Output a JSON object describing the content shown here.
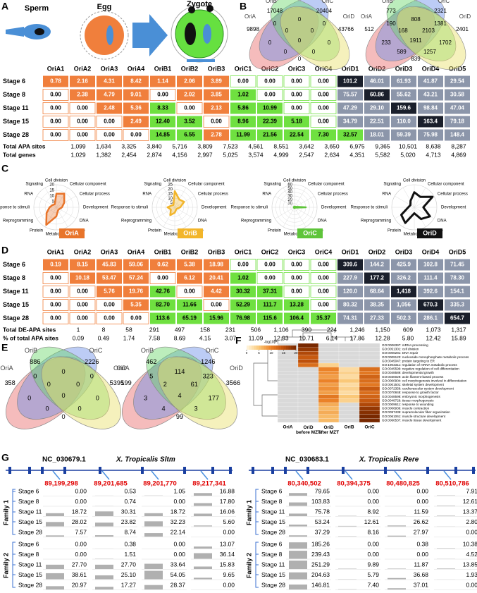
{
  "panel_labels": [
    "A",
    "B",
    "C",
    "D",
    "E",
    "F",
    "G"
  ],
  "panel_a": {
    "cells": [
      "Sperm",
      "Egg",
      "Zygote"
    ],
    "table": {
      "columns": [
        "OriA1",
        "OriA2",
        "OriA3",
        "OriA4",
        "OriB1",
        "OriB2",
        "OriB3",
        "OriC1",
        "OriC2",
        "OriC3",
        "OriC4",
        "OriD1",
        "OriD2",
        "OriD3",
        "OriD4",
        "OriD5"
      ],
      "rows": [
        {
          "label": "Stage 6",
          "values": [
            "0.78",
            "2.16",
            "4.31",
            "8.42",
            "1.14",
            "2.06",
            "3.89",
            "0.00",
            "0.00",
            "0.00",
            "0.00",
            "101.2",
            "46.01",
            "61.93",
            "41.87",
            "29.54"
          ]
        },
        {
          "label": "Stage 8",
          "values": [
            "0.00",
            "2.38",
            "4.79",
            "9.01",
            "0.00",
            "2.02",
            "3.85",
            "1.02",
            "0.00",
            "0.00",
            "0.00",
            "75.57",
            "60.86",
            "55.62",
            "43.21",
            "30.58"
          ]
        },
        {
          "label": "Stage 11",
          "values": [
            "0.00",
            "0.00",
            "2.48",
            "5.36",
            "8.33",
            "0.00",
            "2.13",
            "5.86",
            "10.99",
            "0.00",
            "0.00",
            "47.29",
            "29.10",
            "159.6",
            "98.84",
            "47.04"
          ]
        },
        {
          "label": "Stage 15",
          "values": [
            "0.00",
            "0.00",
            "0.00",
            "2.49",
            "12.40",
            "3.52",
            "0.00",
            "8.96",
            "22.39",
            "5.18",
            "0.00",
            "34.79",
            "22.51",
            "110.0",
            "163.4",
            "79.18"
          ]
        },
        {
          "label": "Stage 28",
          "values": [
            "0.00",
            "0.00",
            "0.00",
            "0.00",
            "14.85",
            "6.55",
            "2.78",
            "11.99",
            "21.56",
            "22.54",
            "7.30",
            "32.57",
            "18.01",
            "59.39",
            "75.98",
            "148.4"
          ]
        }
      ],
      "totals": [
        {
          "label": "Total APA sites",
          "values": [
            "1,099",
            "1,634",
            "3,325",
            "3,840",
            "5,716",
            "3,809",
            "7,523",
            "4,561",
            "8,551",
            "3,642",
            "3,650",
            "6,975",
            "9,365",
            "10,501",
            "8,638",
            "8,287"
          ]
        },
        {
          "label": "Total genes",
          "values": [
            "1,029",
            "1,382",
            "2,454",
            "2,874",
            "4,156",
            "2,997",
            "5,025",
            "3,574",
            "4,999",
            "2,547",
            "2,634",
            "4,351",
            "5,582",
            "5,020",
            "4,713",
            "4,869"
          ]
        }
      ]
    }
  },
  "panel_b": {
    "venns": [
      {
        "labels": [
          "OriA",
          "OriB",
          "OriC",
          "OriD"
        ],
        "values": [
          "17048",
          "20404",
          "0",
          "0",
          "0",
          "9898",
          "0",
          "0",
          "43766",
          "0",
          "0",
          "0",
          "0",
          "0",
          "0"
        ]
      },
      {
        "labels": [
          "OriA",
          "OriB",
          "OriC",
          "OriD"
        ],
        "values": [
          "773",
          "2321",
          "190",
          "808",
          "1381",
          "512",
          "168",
          "2103",
          "2401",
          "233",
          "1911",
          "1702",
          "589",
          "1257",
          "839"
        ]
      }
    ]
  },
  "panel_c": {
    "axes": [
      "Cell division",
      "Cellular component",
      "Cellular process",
      "Development",
      "DNA",
      "Immune",
      "Metabolism",
      "Protein",
      "Reprogramming",
      "Response to stimuli",
      "RNA",
      "Signaling"
    ],
    "charts": [
      {
        "name": "OriA",
        "color": "#e8742a",
        "rlim": [
          0,
          20
        ],
        "rticks": [
          5,
          10,
          15,
          20
        ],
        "values": [
          12,
          14,
          8,
          5,
          3,
          3,
          8,
          18,
          10,
          6,
          4,
          3
        ]
      },
      {
        "name": "OriB",
        "color": "#f2b52a",
        "rlim": [
          0,
          25
        ],
        "rticks": [
          5,
          10,
          15,
          20,
          25
        ],
        "values": [
          18,
          10,
          12,
          6,
          3,
          3,
          6,
          10,
          5,
          8,
          4,
          3
        ]
      },
      {
        "name": "OriC",
        "color": "#5ec43a",
        "rlim": [
          0,
          60
        ],
        "rticks": [
          10,
          20,
          30,
          40,
          50,
          60
        ],
        "values": [
          2,
          2,
          3,
          30,
          2,
          2,
          2,
          2,
          2,
          2,
          2,
          2
        ]
      },
      {
        "name": "OriD",
        "color": "#111111",
        "rlim": [
          0,
          15
        ],
        "values": [
          10,
          8,
          14,
          6,
          12,
          9,
          4,
          12,
          10,
          4,
          3,
          5
        ]
      }
    ]
  },
  "panel_d": {
    "table": {
      "columns": [
        "OriA1",
        "OriA2",
        "OriA3",
        "OriA4",
        "OriB1",
        "OriB2",
        "OriB3",
        "OriC1",
        "OriC2",
        "OriC3",
        "OriC4",
        "OriD1",
        "OriD2",
        "OriD3",
        "OriD4",
        "OriD5"
      ],
      "rows": [
        {
          "label": "Stage 6",
          "values": [
            "0.19",
            "8.15",
            "45.83",
            "59.06",
            "0.62",
            "5.38",
            "18.98",
            "0.00",
            "0.00",
            "0.00",
            "0.00",
            "309.6",
            "144.2",
            "425.9",
            "102.8",
            "71.45"
          ]
        },
        {
          "label": "Stage 8",
          "values": [
            "0.00",
            "10.18",
            "53.47",
            "57.24",
            "0.00",
            "6.12",
            "20.41",
            "1.02",
            "0.00",
            "0.00",
            "0.00",
            "227.9",
            "177.2",
            "326.2",
            "111.4",
            "78.30"
          ]
        },
        {
          "label": "Stage 11",
          "values": [
            "0.00",
            "0.00",
            "5.76",
            "19.76",
            "42.76",
            "0.00",
            "4.42",
            "30.32",
            "37.31",
            "0.00",
            "0.00",
            "120.0",
            "68.64",
            "1,418",
            "392.6",
            "154.1"
          ]
        },
        {
          "label": "Stage 15",
          "values": [
            "0.00",
            "0.00",
            "0.00",
            "5.35",
            "82.70",
            "11.66",
            "0.00",
            "52.29",
            "111.7",
            "13.28",
            "0.00",
            "80.32",
            "38.35",
            "1,056",
            "670.3",
            "335.3"
          ]
        },
        {
          "label": "Stage 28",
          "values": [
            "0.00",
            "0.00",
            "0.00",
            "0.00",
            "113.6",
            "65.19",
            "15.96",
            "76.98",
            "115.6",
            "106.4",
            "35.37",
            "74.31",
            "27.33",
            "502.3",
            "286.1",
            "654.7"
          ]
        }
      ],
      "totals": [
        {
          "label": "Total DE-APA sites",
          "values": [
            "1",
            "8",
            "58",
            "291",
            "497",
            "158",
            "231",
            "506",
            "1,106",
            "390",
            "224",
            "1,246",
            "1,150",
            "609",
            "1,073",
            "1,317"
          ]
        },
        {
          "label": "% of total APA sites",
          "values": [
            "0.09",
            "0.49",
            "1.74",
            "7.58",
            "8.69",
            "4.15",
            "3.07",
            "11.09",
            "12.93",
            "10.71",
            "6.14",
            "17.86",
            "12.28",
            "5.80",
            "12.42",
            "15.89"
          ]
        }
      ]
    }
  },
  "panel_e": {
    "venns": [
      {
        "labels": [
          "OriA",
          "OriB",
          "OriC",
          "OriD"
        ],
        "values": [
          "886",
          "2226",
          "0",
          "0",
          "0",
          "358",
          "0",
          "0",
          "5395",
          "0",
          "0",
          "0",
          "0",
          "0",
          "0"
        ]
      },
      {
        "labels": [
          "OriA",
          "OriB",
          "OriC",
          "OriD"
        ],
        "values": [
          "462",
          "1246",
          "5",
          "114",
          "323",
          "199",
          "2",
          "61",
          "3566",
          "3",
          "4",
          "177",
          "4",
          "3",
          "99"
        ]
      }
    ]
  },
  "panel_f": {
    "legend_title": "-log10(P)",
    "clim": [
      0,
      20
    ],
    "legend_ticks": [
      0,
      5,
      10,
      15,
      20
    ],
    "columns": [
      "OriA",
      "OriD before MZT",
      "OriD after MZT",
      "OriB",
      "OriC"
    ],
    "terms": [
      "GO:0006397: mRNA processing",
      "GO:0051301: cell division",
      "GO:0006281: DNA repair",
      "GO:0009123: nucleoside monophosphate metabolic process",
      "GO:0045047: protein targeting to ER",
      "GO:1903311: regulation of mRNA metabolic process",
      "GO:0045596: negative regulation of cell differentiation",
      "GO:0048589: developmental growth",
      "GO:0030029: actin filament-based process",
      "GO:0000904: cell morphogenesis involved in differentiation",
      "GO:0001501: skeletal system development",
      "GO:0072358: cardiovascular system development",
      "GO:0070848: response to growth factor",
      "GO:0048598: embryonic morphogenesis",
      "GO:0048729: tissue morphogenesis",
      "GO:0009611: response to wounding",
      "GO:0006936: muscle contraction",
      "GO:0097435: supramolecular fiber organization",
      "GO:0061061: muscle structure development",
      "GO:0060537: muscle tissue development"
    ],
    "values": [
      [
        null,
        20,
        null,
        null,
        null
      ],
      [
        null,
        18,
        null,
        null,
        null
      ],
      [
        null,
        16,
        null,
        null,
        null
      ],
      [
        null,
        14,
        null,
        null,
        null
      ],
      [
        null,
        15,
        null,
        null,
        null
      ],
      [
        null,
        12,
        4,
        null,
        null
      ],
      [
        null,
        null,
        10,
        3,
        12
      ],
      [
        null,
        null,
        9,
        4,
        11
      ],
      [
        null,
        null,
        8,
        3,
        13
      ],
      [
        null,
        null,
        10,
        5,
        12
      ],
      [
        null,
        null,
        8,
        3,
        11
      ],
      [
        null,
        null,
        9,
        4,
        14
      ],
      [
        null,
        null,
        8,
        3,
        12
      ],
      [
        null,
        null,
        11,
        5,
        13
      ],
      [
        null,
        null,
        10,
        4,
        14
      ],
      [
        null,
        null,
        7,
        null,
        16
      ],
      [
        null,
        null,
        6,
        null,
        18
      ],
      [
        null,
        null,
        7,
        null,
        19
      ],
      [
        null,
        null,
        6,
        null,
        20
      ],
      [
        null,
        null,
        6,
        null,
        20
      ]
    ]
  },
  "panel_g": {
    "blocks": [
      {
        "accession": "NC_030679.1",
        "gene": "X. Tropicalis Sltm",
        "positions": [
          "89,199,298",
          "89,201,685",
          "89,201,770",
          "89,217,341"
        ],
        "families": [
          {
            "name": "Family 1",
            "rows": [
              {
                "label": "Stage 6",
                "values": [
                  "0.00",
                  "0.53",
                  "1.05",
                  "16.88"
                ]
              },
              {
                "label": "Stage 8",
                "values": [
                  "0.00",
                  "0.74",
                  "0.00",
                  "17.80"
                ]
              },
              {
                "label": "Stage 11",
                "values": [
                  "18.72",
                  "30.31",
                  "18.72",
                  "16.06"
                ]
              },
              {
                "label": "Stage 15",
                "values": [
                  "28.02",
                  "23.82",
                  "32.23",
                  "5.60"
                ]
              },
              {
                "label": "Stage 28",
                "values": [
                  "7.57",
                  "8.74",
                  "22.14",
                  "0.00"
                ]
              }
            ]
          },
          {
            "name": "Family 2",
            "rows": [
              {
                "label": "Stage 6",
                "values": [
                  "0.00",
                  "0.38",
                  "0.00",
                  "13.07"
                ]
              },
              {
                "label": "Stage 8",
                "values": [
                  "0.00",
                  "1.51",
                  "0.00",
                  "36.14"
                ]
              },
              {
                "label": "Stage 11",
                "values": [
                  "27.70",
                  "27.70",
                  "33.64",
                  "15.83"
                ]
              },
              {
                "label": "Stage 15",
                "values": [
                  "38.61",
                  "25.10",
                  "54.05",
                  "9.65"
                ]
              },
              {
                "label": "Stage 28",
                "values": [
                  "20.97",
                  "17.27",
                  "28.37",
                  "0.00"
                ]
              }
            ]
          }
        ]
      },
      {
        "accession": "NC_030683.1",
        "gene": "X. Tropicalis Rere",
        "positions": [
          "80,340,502",
          "80,394,375",
          "80,480,825",
          "80,510,786"
        ],
        "families": [
          {
            "name": "Family 1",
            "rows": [
              {
                "label": "Stage 6",
                "values": [
                  "79.65",
                  "0.00",
                  "0.00",
                  "7.91"
                ]
              },
              {
                "label": "Stage 8",
                "values": [
                  "103.83",
                  "0.00",
                  "0.00",
                  "12.61"
                ]
              },
              {
                "label": "Stage 11",
                "values": [
                  "75.78",
                  "8.92",
                  "11.59",
                  "13.37"
                ]
              },
              {
                "label": "Stage 15",
                "values": [
                  "53.24",
                  "12.61",
                  "26.62",
                  "2.80"
                ]
              },
              {
                "label": "Stage 28",
                "values": [
                  "37.29",
                  "8.16",
                  "27.97",
                  "0.00"
                ]
              }
            ]
          },
          {
            "name": "Family 2",
            "rows": [
              {
                "label": "Stage 6",
                "values": [
                  "185.26",
                  "0.00",
                  "0.38",
                  "10.38"
                ]
              },
              {
                "label": "Stage 8",
                "values": [
                  "239.43",
                  "0.00",
                  "0.00",
                  "4.52"
                ]
              },
              {
                "label": "Stage 11",
                "values": [
                  "251.29",
                  "9.89",
                  "11.87",
                  "13.85"
                ]
              },
              {
                "label": "Stage 15",
                "values": [
                  "204.63",
                  "5.79",
                  "36.68",
                  "1.93"
                ]
              },
              {
                "label": "Stage 28",
                "values": [
                  "146.81",
                  "7.40",
                  "37.01",
                  "0.00"
                ]
              }
            ]
          }
        ]
      }
    ]
  }
}
